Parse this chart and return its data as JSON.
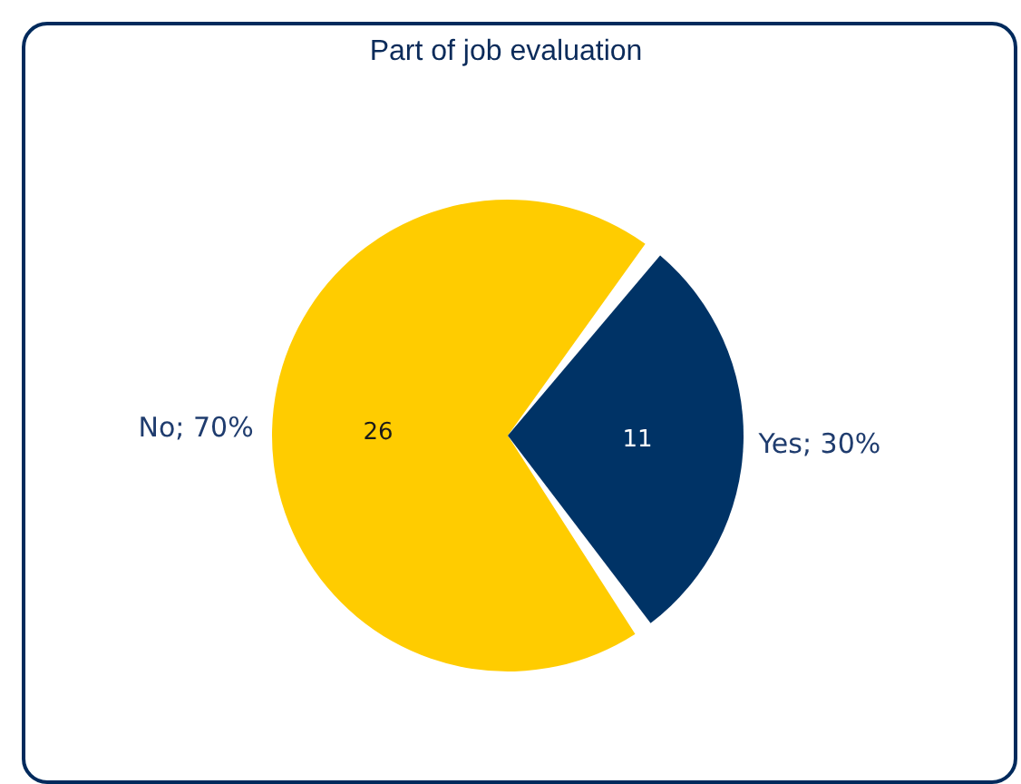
{
  "chart_data": {
    "type": "pie",
    "title": "Part of job evaluation",
    "categories": [
      "No; 70%",
      "Yes; 30%"
    ],
    "values": [
      26,
      11
    ],
    "colors": [
      "#ffcc00",
      "#003366"
    ],
    "data_labels": true
  }
}
